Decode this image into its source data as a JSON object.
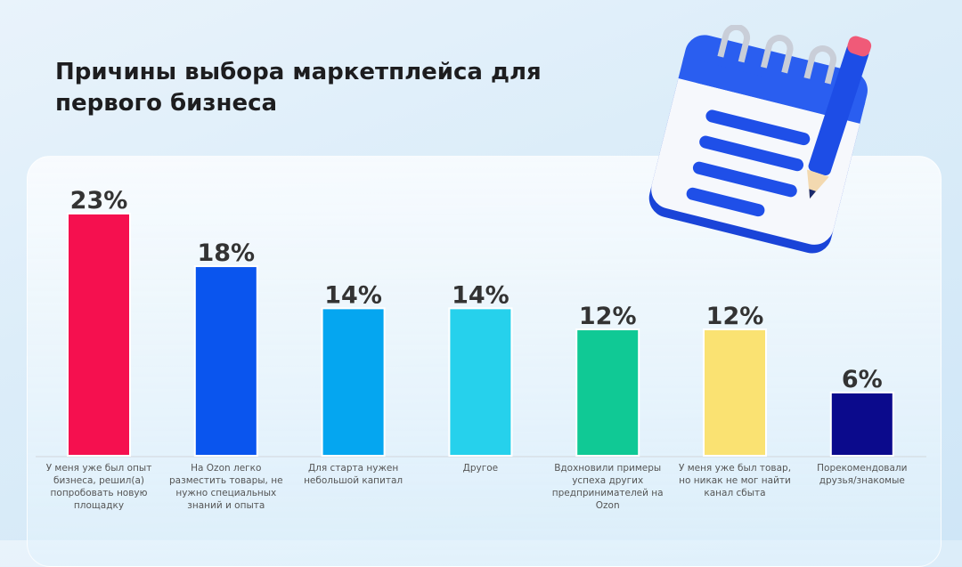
{
  "title": "Причины выбора маркетплейса для первого бизнеса",
  "chart_data": {
    "type": "bar",
    "title": "Причины выбора маркетплейса для первого бизнеса",
    "categories": [
      "У меня уже был опыт бизнеса, решил(а) попробовать новую площадку",
      "На Ozon легко разместить товары, не нужно специальных знаний и опыта",
      "Для старта нужен небольшой капитал",
      "Другое",
      "Вдохновили примеры успеха других предпринимателей на Ozon",
      "У меня уже был товар, но никак не мог найти канал сбыта",
      "Порекомендовали друзья/знакомые"
    ],
    "values": [
      23,
      18,
      14,
      14,
      12,
      12,
      6
    ],
    "labels": [
      "23%",
      "18%",
      "14%",
      "14%",
      "12%",
      "12%",
      "6%"
    ],
    "colors": [
      "#f5104f",
      "#0a55ee",
      "#05a6f0",
      "#26d1ec",
      "#10c995",
      "#fae272",
      "#0b0a8c"
    ],
    "ylim": [
      0,
      25
    ],
    "xlabel": "",
    "ylabel": "",
    "grid": false
  },
  "illustration": "notepad-pencil-icon"
}
